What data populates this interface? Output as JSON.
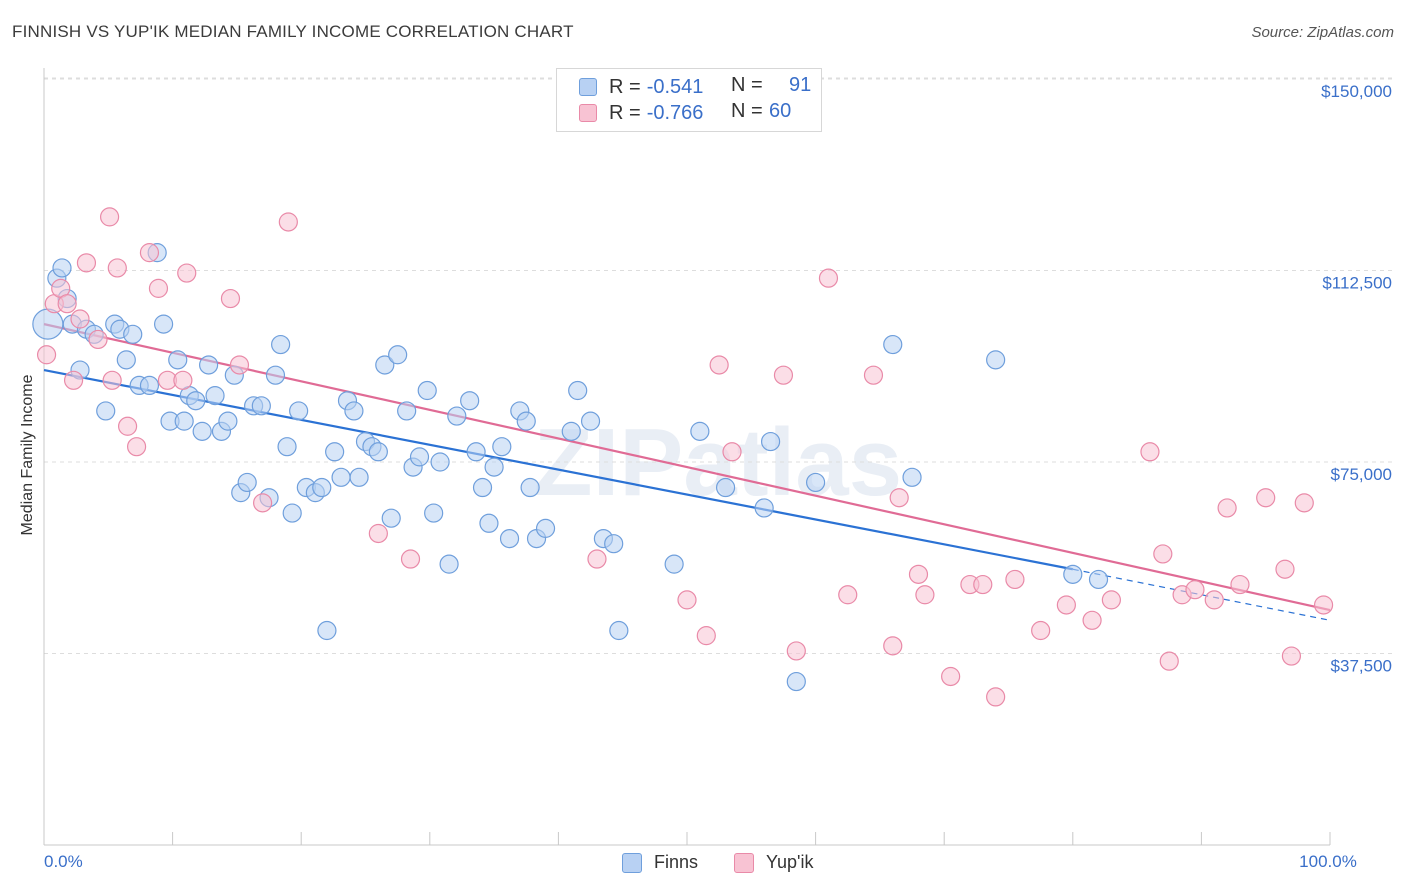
{
  "title": "FINNISH VS YUP'IK MEDIAN FAMILY INCOME CORRELATION CHART",
  "source": "Source: ZipAtlas.com",
  "watermark": "ZIPatlas",
  "legend_top": {
    "row1": {
      "r_label": "R =",
      "r_value": "-0.541",
      "n_label": "N =",
      "n_value": "91"
    },
    "row2": {
      "r_label": "R =",
      "r_value": "-0.766",
      "n_label": "N =",
      "n_value": "60"
    }
  },
  "legend_bottom": {
    "finns": "Finns",
    "yupik": "Yup'ik"
  },
  "colors": {
    "finns_fill": "#b8d1f3",
    "finns_stroke": "#6f9fdc",
    "finns_line": "#2b72d4",
    "yupik_fill": "#f8c3d3",
    "yupik_stroke": "#e98aa8",
    "yupik_line": "#e06b95",
    "axis_label": "#3a6fc9",
    "grid": "#dddddd"
  },
  "chart_data": {
    "type": "scatter",
    "title": "FINNISH VS YUP'IK MEDIAN FAMILY INCOME CORRELATION CHART",
    "xlabel": "",
    "ylabel": "Median Family Income",
    "xlim": [
      0,
      100
    ],
    "ylim": [
      0,
      155000
    ],
    "x_tick_labels": [
      "0.0%",
      "100.0%"
    ],
    "y_ticks": [
      37500,
      75000,
      112500,
      150000
    ],
    "y_tick_labels": [
      "$37,500",
      "$75,000",
      "$112,500",
      "$150,000"
    ],
    "series": [
      {
        "name": "Finns",
        "R": -0.541,
        "N": 91,
        "trend": {
          "x": [
            0,
            80
          ],
          "y": [
            93000,
            54000
          ],
          "dashed_to": [
            100,
            44000
          ]
        },
        "points": [
          [
            0.3,
            102000
          ],
          [
            1,
            111000
          ],
          [
            1.4,
            113000
          ],
          [
            1.8,
            107000
          ],
          [
            2.2,
            102000
          ],
          [
            2.8,
            93000
          ],
          [
            3.3,
            101000
          ],
          [
            3.9,
            100000
          ],
          [
            4.8,
            85000
          ],
          [
            5.5,
            102000
          ],
          [
            5.9,
            101000
          ],
          [
            6.4,
            95000
          ],
          [
            6.9,
            100000
          ],
          [
            7.4,
            90000
          ],
          [
            8.2,
            90000
          ],
          [
            8.8,
            116000
          ],
          [
            9.3,
            102000
          ],
          [
            9.8,
            83000
          ],
          [
            10.4,
            95000
          ],
          [
            10.9,
            83000
          ],
          [
            11.3,
            88000
          ],
          [
            11.8,
            87000
          ],
          [
            12.3,
            81000
          ],
          [
            12.8,
            94000
          ],
          [
            13.3,
            88000
          ],
          [
            13.8,
            81000
          ],
          [
            14.3,
            83000
          ],
          [
            14.8,
            92000
          ],
          [
            15.3,
            69000
          ],
          [
            15.8,
            71000
          ],
          [
            16.3,
            86000
          ],
          [
            16.9,
            86000
          ],
          [
            17.5,
            68000
          ],
          [
            18,
            92000
          ],
          [
            18.4,
            98000
          ],
          [
            18.9,
            78000
          ],
          [
            19.3,
            65000
          ],
          [
            19.8,
            85000
          ],
          [
            20.4,
            70000
          ],
          [
            21.1,
            69000
          ],
          [
            21.6,
            70000
          ],
          [
            22,
            42000
          ],
          [
            22.6,
            77000
          ],
          [
            23.1,
            72000
          ],
          [
            23.6,
            87000
          ],
          [
            24.1,
            85000
          ],
          [
            24.5,
            72000
          ],
          [
            25,
            79000
          ],
          [
            25.5,
            78000
          ],
          [
            26,
            77000
          ],
          [
            26.5,
            94000
          ],
          [
            27,
            64000
          ],
          [
            27.5,
            96000
          ],
          [
            28.2,
            85000
          ],
          [
            28.7,
            74000
          ],
          [
            29.2,
            76000
          ],
          [
            29.8,
            89000
          ],
          [
            30.3,
            65000
          ],
          [
            30.8,
            75000
          ],
          [
            31.5,
            55000
          ],
          [
            32.1,
            84000
          ],
          [
            33.1,
            87000
          ],
          [
            33.6,
            77000
          ],
          [
            34.1,
            70000
          ],
          [
            34.6,
            63000
          ],
          [
            35,
            74000
          ],
          [
            35.6,
            78000
          ],
          [
            36.2,
            60000
          ],
          [
            37,
            85000
          ],
          [
            37.5,
            83000
          ],
          [
            37.8,
            70000
          ],
          [
            38.3,
            60000
          ],
          [
            39,
            62000
          ],
          [
            41,
            81000
          ],
          [
            41.5,
            89000
          ],
          [
            42.5,
            83000
          ],
          [
            43.5,
            60000
          ],
          [
            44.3,
            59000
          ],
          [
            44.7,
            42000
          ],
          [
            49,
            55000
          ],
          [
            51,
            81000
          ],
          [
            53,
            70000
          ],
          [
            56,
            66000
          ],
          [
            56.5,
            79000
          ],
          [
            58.5,
            32000
          ],
          [
            60,
            71000
          ],
          [
            67.5,
            72000
          ],
          [
            66,
            98000
          ],
          [
            74,
            95000
          ],
          [
            80,
            53000
          ],
          [
            82,
            52000
          ]
        ]
      },
      {
        "name": "Yup'ik",
        "R": -0.766,
        "N": 60,
        "trend": {
          "x": [
            0,
            100
          ],
          "y": [
            102000,
            46000
          ]
        },
        "points": [
          [
            0.2,
            96000
          ],
          [
            0.8,
            106000
          ],
          [
            1.3,
            109000
          ],
          [
            1.8,
            106000
          ],
          [
            2.3,
            91000
          ],
          [
            2.8,
            103000
          ],
          [
            3.3,
            114000
          ],
          [
            4.2,
            99000
          ],
          [
            5.1,
            123000
          ],
          [
            5.3,
            91000
          ],
          [
            5.7,
            113000
          ],
          [
            6.5,
            82000
          ],
          [
            7.2,
            78000
          ],
          [
            8.2,
            116000
          ],
          [
            8.9,
            109000
          ],
          [
            9.6,
            91000
          ],
          [
            10.8,
            91000
          ],
          [
            11.1,
            112000
          ],
          [
            14.5,
            107000
          ],
          [
            15.2,
            94000
          ],
          [
            17,
            67000
          ],
          [
            19,
            122000
          ],
          [
            26,
            61000
          ],
          [
            28.5,
            56000
          ],
          [
            43,
            56000
          ],
          [
            50,
            48000
          ],
          [
            51.5,
            41000
          ],
          [
            52.5,
            94000
          ],
          [
            53.5,
            77000
          ],
          [
            57.5,
            92000
          ],
          [
            58.5,
            38000
          ],
          [
            61,
            111000
          ],
          [
            62.5,
            49000
          ],
          [
            64.5,
            92000
          ],
          [
            66,
            39000
          ],
          [
            66.5,
            68000
          ],
          [
            68,
            53000
          ],
          [
            68.5,
            49000
          ],
          [
            70.5,
            33000
          ],
          [
            72,
            51000
          ],
          [
            73,
            51000
          ],
          [
            74,
            29000
          ],
          [
            75.5,
            52000
          ],
          [
            77.5,
            42000
          ],
          [
            79.5,
            47000
          ],
          [
            81.5,
            44000
          ],
          [
            83,
            48000
          ],
          [
            86,
            77000
          ],
          [
            87,
            57000
          ],
          [
            87.5,
            36000
          ],
          [
            88.5,
            49000
          ],
          [
            89.5,
            50000
          ],
          [
            91,
            48000
          ],
          [
            92,
            66000
          ],
          [
            93,
            51000
          ],
          [
            95,
            68000
          ],
          [
            96.5,
            54000
          ],
          [
            97,
            37000
          ],
          [
            98,
            67000
          ],
          [
            99.5,
            47000
          ]
        ]
      }
    ]
  }
}
